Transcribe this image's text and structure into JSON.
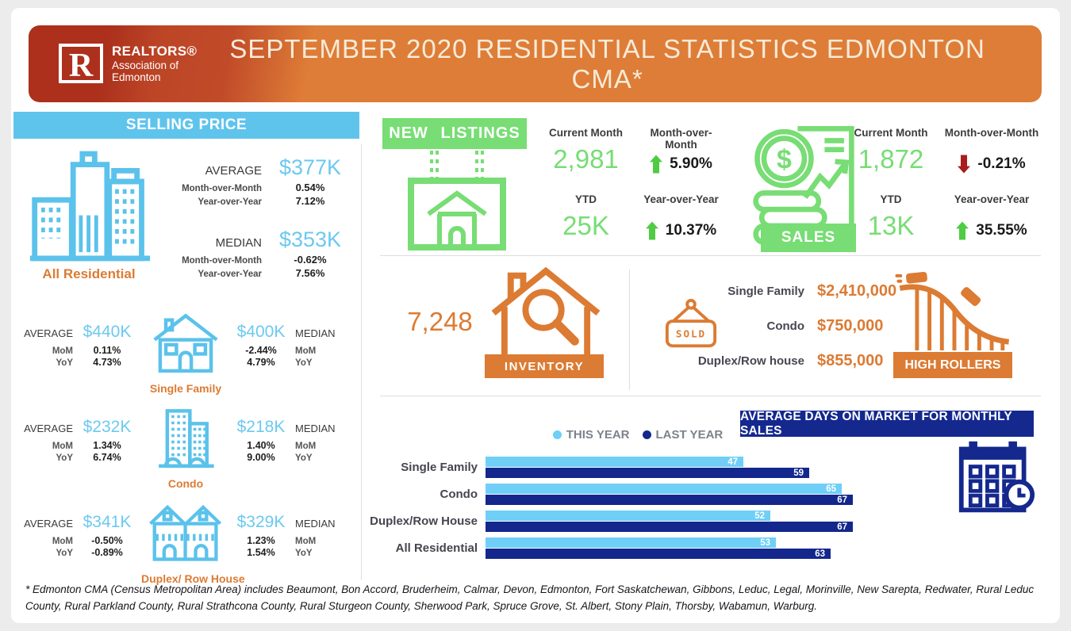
{
  "header": {
    "logo": {
      "brand": "REALTORS®",
      "line1": "Association of",
      "line2": "Edmonton"
    },
    "title": "SEPTEMBER 2020 RESIDENTIAL STATISTICS EDMONTON CMA*"
  },
  "selling_price": {
    "banner": "SELLING PRICE",
    "labels": {
      "average": "AVERAGE",
      "median": "MEDIAN",
      "mom_long": "Month-over-Month",
      "yoy_long": "Year-over-Year",
      "mom": "MoM",
      "yoy": "YoY"
    },
    "all_residential": {
      "name": "All Residential",
      "average": "$377K",
      "average_mom": "0.54%",
      "average_yoy": "7.12%",
      "median": "$353K",
      "median_mom": "-0.62%",
      "median_yoy": "7.56%"
    },
    "property_types": [
      {
        "name": "Single Family",
        "average": "$440K",
        "average_mom": "0.11%",
        "average_yoy": "4.73%",
        "median": "$400K",
        "median_mom": "-2.44%",
        "median_yoy": "4.79%"
      },
      {
        "name": "Condo",
        "average": "$232K",
        "average_mom": "1.34%",
        "average_yoy": "6.74%",
        "median": "$218K",
        "median_mom": "1.40%",
        "median_yoy": "9.00%"
      },
      {
        "name": "Duplex/ Row House",
        "average": "$341K",
        "average_mom": "-0.50%",
        "average_yoy": "-0.89%",
        "median": "$329K",
        "median_mom": "1.23%",
        "median_yoy": "1.54%"
      }
    ]
  },
  "stat_labels": {
    "current_month": "Current Month",
    "mom": "Month-over-Month",
    "ytd": "YTD",
    "yoy": "Year-over-Year"
  },
  "new_listings": {
    "title": "NEW LISTINGS",
    "current_month": "2,981",
    "mom_value": "5.90%",
    "mom_direction": "up",
    "ytd": "25K",
    "yoy_value": "10.37%",
    "yoy_direction": "up"
  },
  "sales": {
    "title": "SALES",
    "current_month": "1,872",
    "mom_value": "-0.21%",
    "mom_direction": "down",
    "ytd": "13K",
    "yoy_value": "35.55%",
    "yoy_direction": "up"
  },
  "inventory": {
    "count": "7,248",
    "label": "INVENTORY"
  },
  "high_rollers": {
    "label": "HIGH ROLLERS",
    "sold_sign": "SOLD",
    "items": [
      {
        "label": "Single Family",
        "value": "$2,410,000"
      },
      {
        "label": "Condo",
        "value": "$750,000"
      },
      {
        "label": "Duplex/Row house",
        "value": "$855,000"
      }
    ]
  },
  "days_on_market": {
    "banner": "AVERAGE DAYS ON MARKET FOR MONTHLY SALES"
  },
  "chart_data": {
    "type": "bar",
    "orientation": "horizontal",
    "title": "AVERAGE DAYS ON MARKET FOR MONTHLY SALES",
    "categories": [
      "Single Family",
      "Condo",
      "Duplex/Row House",
      "All Residential"
    ],
    "series": [
      {
        "name": "THIS YEAR",
        "color": "#6FCFF7",
        "values": [
          47,
          65,
          52,
          53
        ]
      },
      {
        "name": "LAST YEAR",
        "color": "#13278C",
        "values": [
          59,
          67,
          67,
          63
        ]
      }
    ],
    "xlim": [
      0,
      68
    ],
    "value_labels": true,
    "legend_position": "top",
    "grid": false
  },
  "footnote": "* Edmonton CMA (Census Metropolitan Area) includes Beaumont, Bon Accord, Bruderheim, Calmar, Devon, Edmonton, Fort Saskatchewan, Gibbons, Leduc, Legal, Morinville, New Sarepta, Redwater, Rural Leduc County, Rural Parkland County, Rural Strathcona County, Rural Sturgeon County, Sherwood Park, Spruce Grove, St. Albert, Stony Plain, Thorsby, Wabamun, Warburg.",
  "colors": {
    "header_red": "#AC301C",
    "header_orange": "#DE7D37",
    "light_blue": "#5FC4EC",
    "price_blue": "#6CC9F0",
    "orange": "#DC7B33",
    "green": "#77DD74",
    "navy": "#14288E",
    "bar_light_blue": "#6FCFF7",
    "bar_navy": "#13278C",
    "up_green": "#4FCB44",
    "down_red": "#A81D1D"
  }
}
